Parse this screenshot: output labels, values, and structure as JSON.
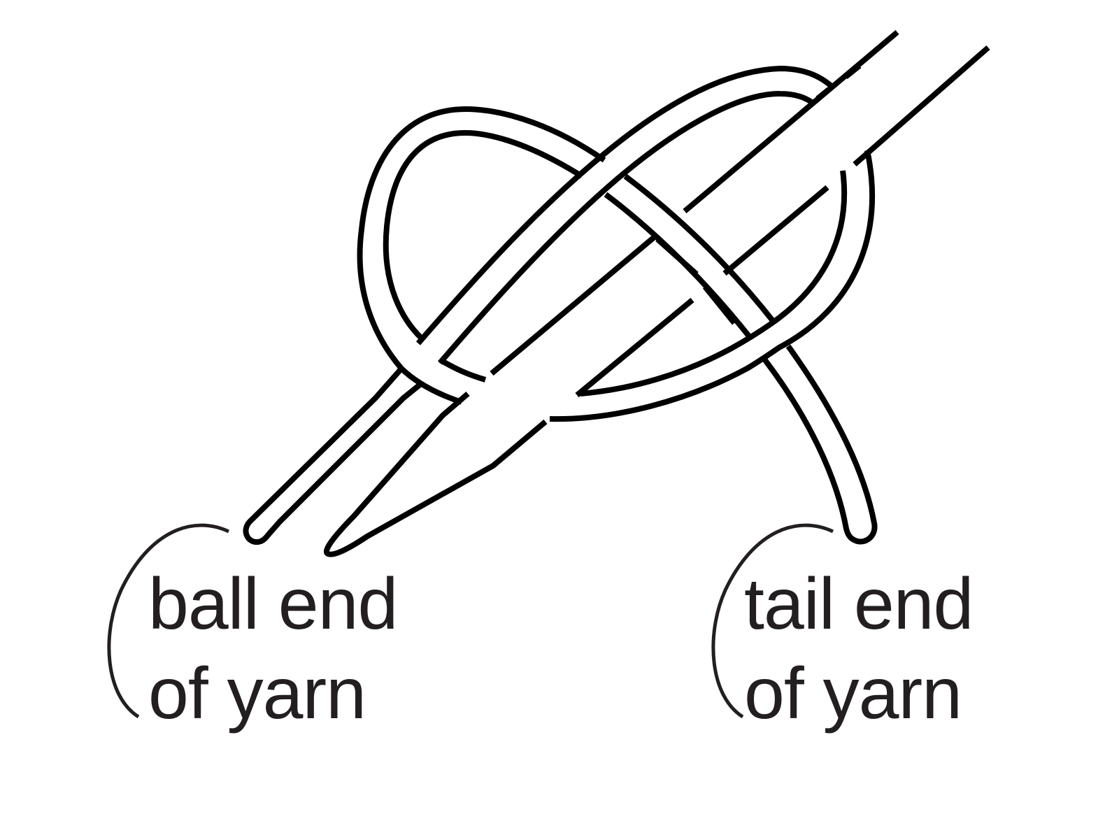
{
  "diagram": {
    "title": "",
    "colors": {
      "stroke": "#000000",
      "label_text": "#231f20",
      "callout": "#231f20",
      "background": "#ffffff"
    },
    "labels": {
      "ball_end": {
        "line1": "ball end",
        "line2": "of yarn"
      },
      "tail_end": {
        "line1": "tail end",
        "line2": "of yarn"
      }
    }
  }
}
